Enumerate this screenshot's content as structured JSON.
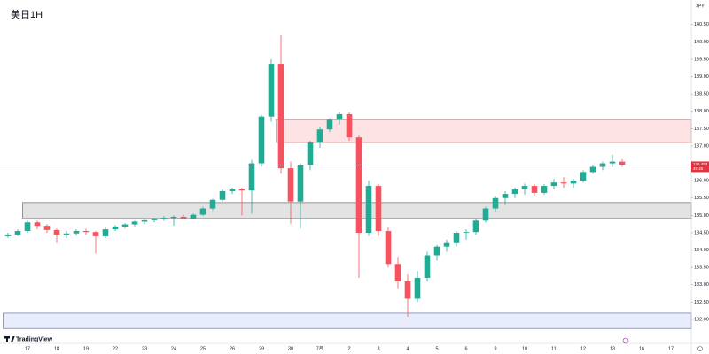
{
  "chart_data": {
    "type": "candlestick",
    "title": "美日1H",
    "currency": "JPY",
    "countdown": "49:45",
    "brand": "TradingView",
    "up_color": "#22ab94",
    "down_color": "#f7525f",
    "categories": [
      null,
      null,
      "17",
      null,
      null,
      "18",
      null,
      null,
      "19",
      null,
      null,
      "22",
      null,
      null,
      "23",
      null,
      null,
      "24",
      null,
      null,
      "25",
      null,
      null,
      "26",
      null,
      null,
      "29",
      null,
      null,
      "30",
      null,
      null,
      "7月",
      null,
      null,
      "2",
      null,
      null,
      "3",
      null,
      null,
      "4",
      null,
      null,
      "5",
      null,
      null,
      "6",
      null,
      null,
      "9",
      null,
      null,
      "10",
      null,
      null,
      "11",
      null,
      null,
      "12",
      null,
      null,
      "13",
      null,
      null,
      "16",
      null,
      null,
      "17"
    ],
    "open": [
      134.4,
      134.45,
      134.55,
      134.8,
      134.7,
      134.58,
      134.45,
      134.48,
      134.55,
      134.52,
      134.4,
      134.6,
      134.68,
      134.74,
      134.82,
      134.86,
      134.9,
      134.93,
      134.96,
      134.92,
      135.02,
      135.2,
      135.45,
      135.7,
      135.76,
      135.72,
      136.5,
      137.85,
      139.37,
      136.36,
      135.4,
      136.45,
      137.1,
      137.48,
      137.75,
      137.92,
      137.25,
      134.5,
      135.85,
      134.55,
      133.6,
      133.1,
      132.6,
      133.2,
      133.85,
      134.1,
      134.2,
      134.5,
      134.52,
      134.85,
      135.2,
      135.5,
      135.62,
      135.75,
      135.85,
      135.65,
      135.85,
      135.95,
      135.92,
      136.0,
      136.25,
      136.4,
      136.5,
      136.55,
      null,
      null,
      null,
      null,
      null
    ],
    "high": [
      134.5,
      134.6,
      134.85,
      134.85,
      134.75,
      134.62,
      134.55,
      134.6,
      134.62,
      134.55,
      134.65,
      134.72,
      134.78,
      134.85,
      134.9,
      134.93,
      134.98,
      135.0,
      135.02,
      135.05,
      135.25,
      135.48,
      135.75,
      135.8,
      135.8,
      136.6,
      137.9,
      139.5,
      140.19,
      136.55,
      136.5,
      137.15,
      137.55,
      137.8,
      137.98,
      137.98,
      137.3,
      136.0,
      135.9,
      134.65,
      133.8,
      133.3,
      133.4,
      133.95,
      134.15,
      134.3,
      134.55,
      134.6,
      134.9,
      135.25,
      135.55,
      135.7,
      135.8,
      135.92,
      135.9,
      135.9,
      136.05,
      136.1,
      136.05,
      136.3,
      136.45,
      136.55,
      136.75,
      136.62,
      null,
      null,
      null,
      null,
      null
    ],
    "low": [
      134.35,
      134.4,
      134.5,
      134.6,
      134.5,
      134.2,
      134.35,
      134.42,
      134.45,
      133.9,
      134.35,
      134.55,
      134.62,
      134.68,
      134.75,
      134.8,
      134.84,
      134.7,
      134.88,
      134.88,
      134.98,
      135.15,
      135.4,
      135.62,
      135.0,
      135.05,
      136.4,
      137.7,
      136.2,
      134.76,
      134.62,
      136.3,
      136.95,
      137.4,
      137.62,
      137.15,
      133.2,
      134.4,
      134.4,
      133.5,
      132.9,
      132.08,
      132.5,
      133.1,
      133.7,
      133.95,
      134.1,
      134.3,
      134.45,
      134.8,
      135.1,
      135.3,
      135.5,
      135.6,
      135.55,
      135.6,
      135.75,
      135.8,
      135.8,
      135.95,
      136.2,
      136.3,
      136.4,
      136.4,
      null,
      null,
      null,
      null,
      null
    ],
    "close": [
      134.45,
      134.55,
      134.8,
      134.7,
      134.58,
      134.45,
      134.48,
      134.55,
      134.52,
      134.4,
      134.6,
      134.68,
      134.74,
      134.82,
      134.86,
      134.9,
      134.93,
      134.96,
      134.92,
      135.02,
      135.2,
      135.45,
      135.7,
      135.76,
      135.72,
      136.5,
      137.85,
      139.37,
      136.36,
      135.4,
      136.45,
      137.1,
      137.48,
      137.75,
      137.92,
      137.25,
      134.5,
      135.85,
      134.55,
      133.6,
      133.1,
      132.6,
      133.2,
      133.85,
      134.1,
      134.2,
      134.5,
      134.52,
      134.85,
      135.2,
      135.5,
      135.62,
      135.75,
      135.85,
      135.65,
      135.85,
      135.95,
      135.92,
      136.0,
      136.25,
      136.4,
      136.5,
      136.55,
      136.453,
      null,
      null,
      null,
      null,
      null
    ],
    "zones": [
      {
        "from_category": 28,
        "top": 137.76,
        "bottom": 137.1,
        "color": "#fde3e3",
        "border": "#e06666"
      },
      {
        "from_category": 2,
        "top": 135.37,
        "bottom": 134.91,
        "color": "#e3e3e3",
        "border": "#555555"
      },
      {
        "from_category": 0,
        "top": 132.18,
        "bottom": 131.74,
        "color": "#e8ecfb",
        "border": "#4a5ad0"
      }
    ],
    "ylim": [
      131.311,
      141.209
    ],
    "yticks": [
      {
        "value": 132,
        "label": "132.000"
      },
      {
        "value": 132.5,
        "label": "132.500"
      },
      {
        "value": 133,
        "label": "133.000"
      },
      {
        "value": 133.5,
        "label": "133.500"
      },
      {
        "value": 134,
        "label": "134.000"
      },
      {
        "value": 134.5,
        "label": "134.500"
      },
      {
        "value": 135,
        "label": "135.000"
      },
      {
        "value": 135.5,
        "label": "135.500"
      },
      {
        "value": 136,
        "label": "136.000"
      },
      {
        "value": 137,
        "label": "137.000"
      },
      {
        "value": 137.5,
        "label": "137.500"
      },
      {
        "value": 138,
        "label": "138.000"
      },
      {
        "value": 138.5,
        "label": "138.500"
      },
      {
        "value": 139,
        "label": "139.000"
      },
      {
        "value": 139.5,
        "label": "139.500"
      },
      {
        "value": 140,
        "label": "140.000"
      },
      {
        "value": 140.5,
        "label": "140.500"
      }
    ]
  }
}
